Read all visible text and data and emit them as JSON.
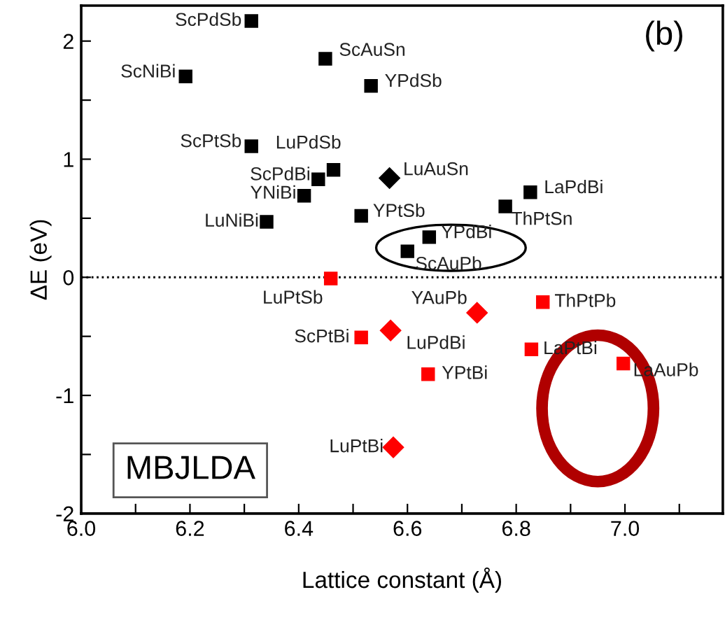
{
  "chart_data": {
    "type": "scatter",
    "xlabel": "Lattice constant (Å)",
    "ylabel": "ΔE (eV)",
    "xlim": [
      6.0,
      7.18
    ],
    "ylim": [
      -2,
      2.3
    ],
    "xticks": [
      {
        "value": 6.0,
        "label": "6.0"
      },
      {
        "value": 6.1,
        "label": null
      },
      6.2,
      {
        "value": 6.3,
        "label": null
      },
      6.4,
      {
        "value": 6.5,
        "label": null
      },
      6.6,
      {
        "value": 6.7,
        "label": null
      },
      6.8,
      {
        "value": 6.9,
        "label": null
      },
      {
        "value": 7.0,
        "label": "7.0"
      },
      {
        "value": 7.1,
        "label": null
      }
    ],
    "yticks": [
      -2,
      {
        "value": -1.5,
        "label": null
      },
      -1,
      {
        "value": -0.5,
        "label": null
      },
      0,
      {
        "value": 0.5,
        "label": null
      },
      1,
      {
        "value": 1.5,
        "label": null
      },
      2
    ],
    "grid": false,
    "legend": false,
    "series": [
      {
        "color": "#000000",
        "marker": "square",
        "x": [
          6.313,
          6.192,
          6.449,
          6.533,
          6.313,
          6.464,
          6.436,
          6.41,
          6.341,
          6.515,
          6.826,
          6.78,
          6.64
        ],
        "values": [
          2.17,
          1.7,
          1.85,
          1.62,
          1.11,
          0.91,
          0.83,
          0.69,
          0.47,
          0.52,
          0.72,
          0.6,
          0.34
        ]
      },
      {
        "color": "#000000",
        "marker": "diamond",
        "x": [
          6.567
        ],
        "values": [
          0.84
        ]
      },
      {
        "color": "#000000",
        "marker": "square",
        "x": [
          6.6
        ],
        "values": [
          0.22
        ]
      },
      {
        "color": "#ff0000",
        "marker": "square",
        "x": [
          6.459,
          6.828,
          6.638
        ],
        "values": [
          -0.01,
          -0.61,
          -0.82
        ]
      },
      {
        "color": "#ff0000",
        "marker": "diamond",
        "x": [
          6.728,
          6.569,
          6.574
        ],
        "values": [
          -0.3,
          -0.45,
          -1.44
        ]
      },
      {
        "color": "#ff0000",
        "marker": "square",
        "x": [
          6.849,
          6.515,
          6.997
        ],
        "values": [
          -0.21,
          -0.51,
          -0.73
        ]
      }
    ],
    "ref_lines": [
      {
        "axis": "y",
        "value": 0,
        "line_style": "dotted",
        "color": "#000000"
      }
    ],
    "annotations": [
      {
        "text": "ScPdSb",
        "x": 6.313,
        "y": 2.17
      },
      {
        "text": "ScNiBi",
        "x": 6.192,
        "y": 1.7
      },
      {
        "text": "ScAuSn",
        "x": 6.449,
        "y": 1.85
      },
      {
        "text": "YPdSb",
        "x": 6.533,
        "y": 1.62
      },
      {
        "text": "ScPtSb",
        "x": 6.313,
        "y": 1.11
      },
      {
        "text": "LuPdSb",
        "x": 6.464,
        "y": 0.91
      },
      {
        "text": "ScPdBi",
        "x": 6.436,
        "y": 0.83
      },
      {
        "text": "YNiBi",
        "x": 6.41,
        "y": 0.69
      },
      {
        "text": "LuNiBi",
        "x": 6.341,
        "y": 0.47
      },
      {
        "text": "LuAuSn",
        "x": 6.567,
        "y": 0.84
      },
      {
        "text": "YPtSb",
        "x": 6.515,
        "y": 0.52
      },
      {
        "text": "LaPdBi",
        "x": 6.826,
        "y": 0.72
      },
      {
        "text": "ThPtSn",
        "x": 6.78,
        "y": 0.6
      },
      {
        "text": "YPdBi",
        "x": 6.64,
        "y": 0.34
      },
      {
        "text": "ScAuPb",
        "x": 6.6,
        "y": 0.22
      },
      {
        "text": "LuPtSb",
        "x": 6.459,
        "y": -0.01
      },
      {
        "text": "YAuPb",
        "x": 6.728,
        "y": -0.3
      },
      {
        "text": "ThPtPb",
        "x": 6.849,
        "y": -0.21
      },
      {
        "text": "LuPdBi",
        "x": 6.569,
        "y": -0.45
      },
      {
        "text": "ScPtBi",
        "x": 6.515,
        "y": -0.51
      },
      {
        "text": "LaPtBi",
        "x": 6.828,
        "y": -0.61
      },
      {
        "text": "YPtBi",
        "x": 6.638,
        "y": -0.82
      },
      {
        "text": "LaAuPb",
        "x": 6.997,
        "y": -0.73
      },
      {
        "text": "LuPtBi",
        "x": 6.574,
        "y": -1.44
      },
      "(b)",
      "MBJLDA"
    ]
  }
}
